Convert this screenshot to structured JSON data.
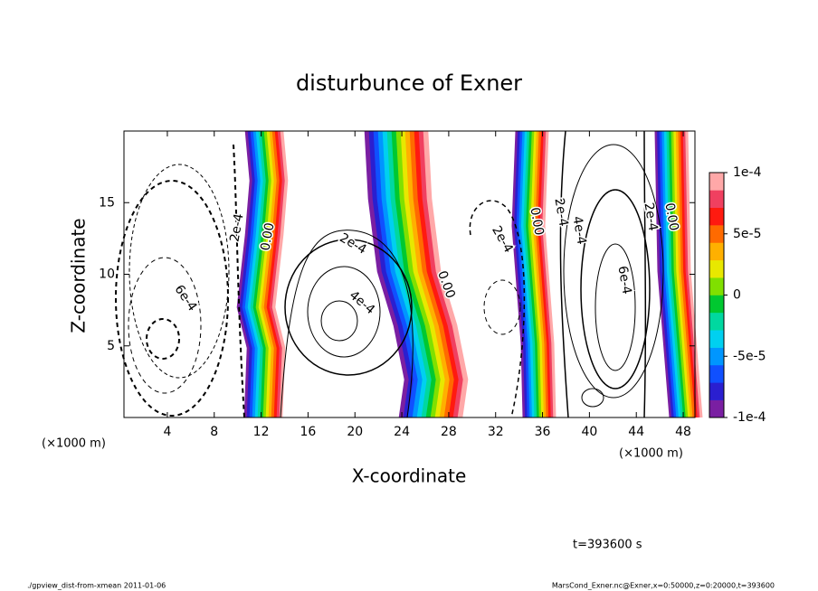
{
  "chart_data": {
    "type": "contour",
    "title": "disturbunce of Exner",
    "x_label": "X-coordinate",
    "y_label": "Z-coordinate",
    "x_unit_label": "(×1000 m)",
    "xlim": [
      0.3,
      49
    ],
    "xticks": [
      4,
      8,
      12,
      16,
      20,
      24,
      28,
      32,
      36,
      40,
      44,
      48
    ],
    "ylim": [
      0,
      20
    ],
    "yticks": [
      5,
      10,
      15
    ],
    "colorbar_lim": [
      -0.0001,
      0.0001
    ],
    "colorbar_ticks": [
      {
        "value": 0.0001,
        "label": "1e-4"
      },
      {
        "value": 5e-05,
        "label": "5e-5"
      },
      0,
      {
        "value": -5e-05,
        "label": "-5e-5"
      },
      {
        "value": -0.0001,
        "label": "-1e-4"
      }
    ],
    "colors": [
      "#7a1fa2",
      "#2a1fd0",
      "#1050ff",
      "#0096ff",
      "#00d0f0",
      "#00d8a0",
      "#00c830",
      "#80e000",
      "#e8e800",
      "#ffb000",
      "#ff6a00",
      "#ff1a10",
      "#f04060",
      "#ffa8a8"
    ],
    "contour_labels": [
      "6e-4",
      "2e-4",
      "0.00",
      "2e-4",
      "4e-4",
      "0.00",
      "2e-4",
      "0.00",
      "2e-4",
      "4e-4",
      "6e-4",
      "2e-4",
      "0.00"
    ],
    "time_label": "t=393600 s",
    "footer_left": "./gpview_dist-from-xmean  2011-01-06",
    "footer_right": "MarsCond_Exner.nc@Exner,x=0:50000,z=0:20000,t=393600"
  }
}
